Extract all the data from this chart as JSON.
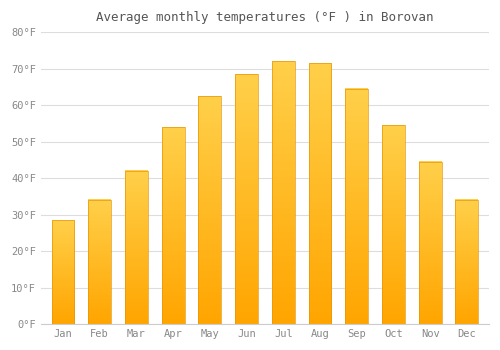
{
  "title": "Average monthly temperatures (°F ) in Borovan",
  "months": [
    "Jan",
    "Feb",
    "Mar",
    "Apr",
    "May",
    "Jun",
    "Jul",
    "Aug",
    "Sep",
    "Oct",
    "Nov",
    "Dec"
  ],
  "values": [
    28.5,
    34.0,
    42.0,
    54.0,
    62.5,
    68.5,
    72.0,
    71.5,
    64.5,
    54.5,
    44.5,
    34.0
  ],
  "bar_color_bottom": "#FFA500",
  "bar_color_top": "#FFD04A",
  "bar_edge_color": "#E8950A",
  "ylim": [
    0,
    80
  ],
  "ytick_step": 10,
  "background_color": "#FFFFFF",
  "plot_bg_color": "#FFFFFF",
  "grid_color": "#DDDDDD",
  "tick_label_color": "#888888",
  "title_color": "#555555",
  "font_family": "monospace",
  "title_fontsize": 9,
  "tick_fontsize": 7.5
}
